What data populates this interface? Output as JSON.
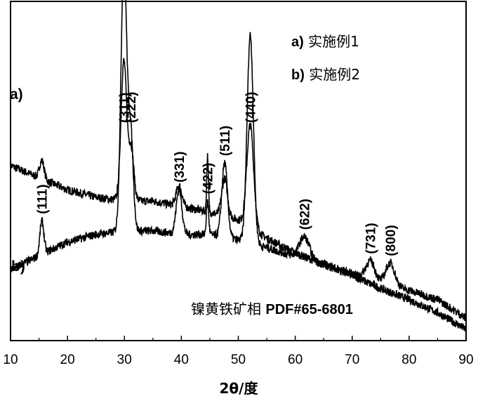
{
  "chart_data": {
    "type": "line",
    "title": "",
    "xlabel": "2θ/度",
    "ylabel": "",
    "xlim": [
      10,
      90
    ],
    "xticks": [
      10,
      20,
      30,
      40,
      50,
      60,
      70,
      80,
      90
    ],
    "y_ticks_shown": false,
    "grid": false,
    "legend": {
      "position": "top-right",
      "entries": [
        {
          "key": "a)",
          "text": "实施例1"
        },
        {
          "key": "b)",
          "text": "实施例2"
        }
      ]
    },
    "series": [
      {
        "name": "a)",
        "color": "#000000",
        "baseline": [
          [
            10,
            0.94
          ],
          [
            20,
            0.81
          ],
          [
            25,
            0.77
          ],
          [
            30,
            0.75
          ],
          [
            35,
            0.75
          ],
          [
            40,
            0.72
          ],
          [
            45,
            0.69
          ],
          [
            50,
            0.65
          ],
          [
            55,
            0.55
          ],
          [
            60,
            0.47
          ],
          [
            65,
            0.41
          ],
          [
            70,
            0.35
          ],
          [
            75,
            0.28
          ],
          [
            80,
            0.22
          ],
          [
            85,
            0.15
          ],
          [
            90,
            0.06
          ]
        ],
        "peaks": [
          {
            "x": 15.5,
            "height": 0.1,
            "width": 0.4
          },
          {
            "x": 29.9,
            "height": 0.75,
            "width": 0.5
          },
          {
            "x": 31.2,
            "height": 0.28,
            "width": 0.45
          },
          {
            "x": 39.6,
            "height": 0.11,
            "width": 0.5
          },
          {
            "x": 44.6,
            "height": 0.3,
            "width": 0.15
          },
          {
            "x": 47.6,
            "height": 0.2,
            "width": 0.5
          },
          {
            "x": 52.1,
            "height": 0.55,
            "width": 0.6
          }
        ]
      },
      {
        "name": "b)",
        "color": "#000000",
        "baseline": [
          [
            10,
            0.38
          ],
          [
            20,
            0.53
          ],
          [
            25,
            0.57
          ],
          [
            30,
            0.59
          ],
          [
            35,
            0.59
          ],
          [
            40,
            0.57
          ],
          [
            45,
            0.57
          ],
          [
            50,
            0.54
          ],
          [
            55,
            0.5
          ],
          [
            60,
            0.45
          ],
          [
            65,
            0.41
          ],
          [
            70,
            0.36
          ],
          [
            75,
            0.31
          ],
          [
            80,
            0.27
          ],
          [
            85,
            0.22
          ],
          [
            90,
            0.12
          ]
        ],
        "peaks": [
          {
            "x": 15.5,
            "height": 0.18,
            "width": 0.35
          },
          {
            "x": 29.9,
            "height": 1.45,
            "width": 0.5
          },
          {
            "x": 31.1,
            "height": 0.52,
            "width": 0.45
          },
          {
            "x": 39.6,
            "height": 0.24,
            "width": 0.5
          },
          {
            "x": 44.6,
            "height": 0.18,
            "width": 0.2
          },
          {
            "x": 47.6,
            "height": 0.4,
            "width": 0.5
          },
          {
            "x": 52.1,
            "height": 1.12,
            "width": 0.55
          },
          {
            "x": 61.6,
            "height": 0.12,
            "width": 0.9
          },
          {
            "x": 73.2,
            "height": 0.1,
            "width": 0.8
          },
          {
            "x": 76.7,
            "height": 0.12,
            "width": 0.8
          }
        ]
      }
    ],
    "annotations": {
      "series_labels": [
        {
          "text": "a)",
          "series": "a)"
        },
        {
          "text": "b)",
          "series": "b)"
        }
      ],
      "peak_labels": [
        {
          "text": "(111)",
          "x": 15.5
        },
        {
          "text": "(311)",
          "x": 29.9
        },
        {
          "text": "(222)",
          "x": 31.1
        },
        {
          "text": "(331)",
          "x": 39.6
        },
        {
          "text": "(422)",
          "x": 44.6
        },
        {
          "text": "(511)",
          "x": 47.6
        },
        {
          "text": "(440)",
          "x": 52.1
        },
        {
          "text": "(622)",
          "x": 61.6
        },
        {
          "text": "(731)",
          "x": 73.2
        },
        {
          "text": "(800)",
          "x": 76.7
        }
      ],
      "phase_label": {
        "name": "镍黄铁矿相",
        "pdf": "PDF#65-6801"
      }
    }
  }
}
